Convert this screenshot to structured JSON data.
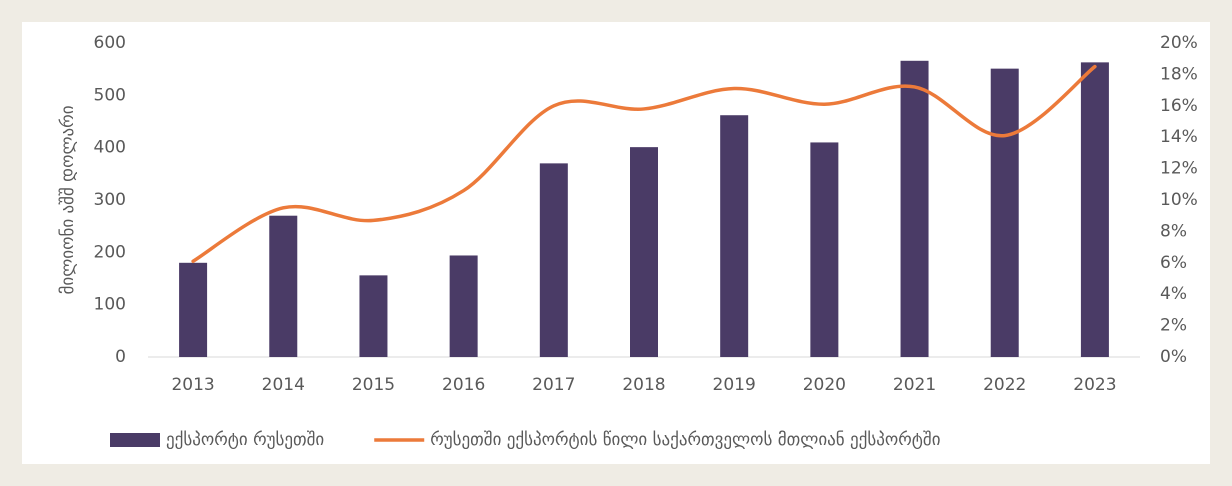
{
  "chart_data": {
    "type": "bar",
    "y_label": "მილიონი აშშ დოლარი",
    "categories": [
      "2013",
      "2014",
      "2015",
      "2016",
      "2017",
      "2018",
      "2019",
      "2020",
      "2021",
      "2022",
      "2023"
    ],
    "series": [
      {
        "name": "ექსპორტი რუსეთში",
        "type": "bar",
        "color": "#4a3b66",
        "values": [
          180,
          270,
          156,
          194,
          370,
          401,
          462,
          410,
          566,
          551,
          563
        ]
      },
      {
        "name": "რუსეთში ექსპორტის წილი საქართველოს მთლიან ექსპორტში",
        "type": "line",
        "axis": "y2",
        "color": "#ec7a3a",
        "values": [
          6.1,
          9.5,
          8.7,
          10.6,
          16.0,
          15.8,
          17.1,
          16.1,
          17.2,
          14.1,
          18.5
        ]
      }
    ],
    "ylim": [
      0,
      600
    ],
    "yticks": [
      0,
      100,
      200,
      300,
      400,
      500,
      600
    ],
    "y2lim": [
      0,
      20
    ],
    "y2ticks": [
      {
        "value": 0,
        "label": "0%"
      },
      {
        "value": 2,
        "label": "2%"
      },
      {
        "value": 4,
        "label": "4%"
      },
      {
        "value": 6,
        "label": "6%"
      },
      {
        "value": 8,
        "label": "8%"
      },
      {
        "value": 10,
        "label": "10%"
      },
      {
        "value": 12,
        "label": "12%"
      },
      {
        "value": 14,
        "label": "14%"
      },
      {
        "value": 16,
        "label": "16%"
      },
      {
        "value": 18,
        "label": "18%"
      },
      {
        "value": 20,
        "label": "20%"
      }
    ],
    "grid": false,
    "legend": "bottom"
  }
}
